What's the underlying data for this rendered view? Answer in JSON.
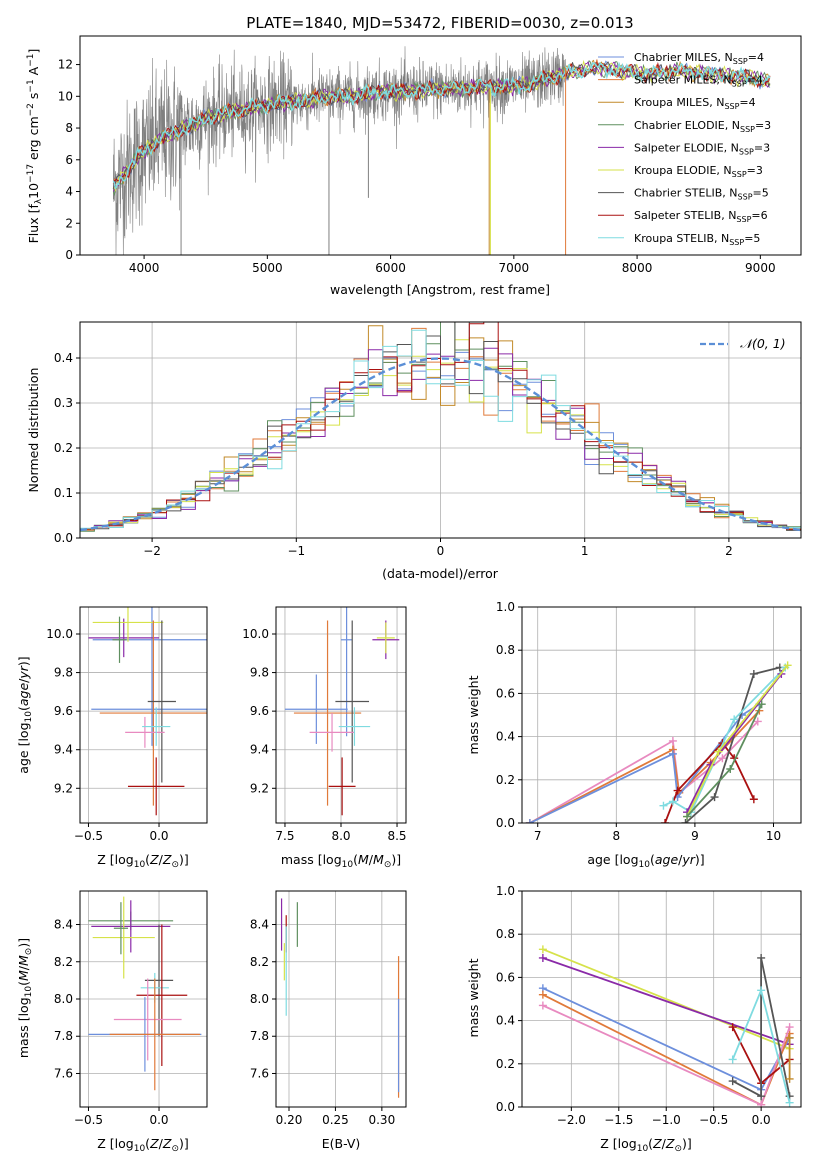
{
  "palette": {
    "Chabrier MILES": "#6d8fdc",
    "Salpeter MILES": "#e07a3a",
    "Kroupa MILES": "#c28a2a",
    "Chabrier ELODIE": "#5f8f5f",
    "Salpeter ELODIE": "#8a2aa8",
    "Kroupa ELODIE": "#d6e24a",
    "Chabrier STELIB": "#555555",
    "Salpeter STELIB": "#aa1111",
    "Kroupa STELIB": "#7fdbe0",
    "extra": "#e88ac0",
    "observed": "#808080"
  },
  "chart_data": [
    {
      "id": "spectrum",
      "type": "line",
      "title": "PLATE=1840, MJD=53472, FIBERID=0030, z=0.013",
      "xlabel": "wavelength [Angstrom, rest frame]",
      "ylabel": "Flux [f",
      "ylabel_full": "Flux [fλ10−17 erg cm−2 s−1 A−1]",
      "xlim": [
        3480,
        9330
      ],
      "ylim": [
        0,
        13.8
      ],
      "xticks": [
        4000,
        5000,
        6000,
        7000,
        8000,
        9000
      ],
      "yticks": [
        0,
        2,
        4,
        6,
        8,
        10,
        12
      ],
      "legend": [
        {
          "label": "Chabrier MILES, N",
          "sub": "SSP",
          "tail": "=4",
          "color": "#6d8fdc"
        },
        {
          "label": "Salpeter MILES, N",
          "sub": "SSP",
          "tail": "=4",
          "color": "#e07a3a"
        },
        {
          "label": "Kroupa MILES, N",
          "sub": "SSP",
          "tail": "=4",
          "color": "#c28a2a"
        },
        {
          "label": "Chabrier ELODIE, N",
          "sub": "SSP",
          "tail": "=3",
          "color": "#5f8f5f"
        },
        {
          "label": "Salpeter ELODIE, N",
          "sub": "SSP",
          "tail": "=3",
          "color": "#8a2aa8"
        },
        {
          "label": "Kroupa ELODIE, N",
          "sub": "SSP",
          "tail": "=3",
          "color": "#d6e24a"
        },
        {
          "label": "Chabrier STELIB, N",
          "sub": "SSP",
          "tail": "=5",
          "color": "#555555"
        },
        {
          "label": "Salpeter STELIB, N",
          "sub": "SSP",
          "tail": "=6",
          "color": "#aa1111"
        },
        {
          "label": "Kroupa STELIB, N",
          "sub": "SSP",
          "tail": "=5",
          "color": "#7fdbe0"
        }
      ],
      "continuum": [
        [
          3750,
          4.2
        ],
        [
          3850,
          5.2
        ],
        [
          3950,
          6.2
        ],
        [
          4050,
          6.8
        ],
        [
          4150,
          7.4
        ],
        [
          4300,
          7.9
        ],
        [
          4500,
          8.6
        ],
        [
          4700,
          9.0
        ],
        [
          4900,
          9.3
        ],
        [
          5100,
          9.6
        ],
        [
          5300,
          9.7
        ],
        [
          5500,
          10.0
        ],
        [
          5700,
          10.0
        ],
        [
          5900,
          10.3
        ],
        [
          6100,
          10.3
        ],
        [
          6300,
          10.4
        ],
        [
          6500,
          10.5
        ],
        [
          6700,
          10.6
        ],
        [
          6900,
          10.6
        ],
        [
          7100,
          10.7
        ],
        [
          7300,
          11.2
        ],
        [
          7500,
          11.6
        ],
        [
          7700,
          11.8
        ],
        [
          7900,
          11.6
        ],
        [
          8100,
          11.4
        ],
        [
          8300,
          11.6
        ],
        [
          8500,
          11.5
        ],
        [
          8700,
          11.3
        ],
        [
          8900,
          11.2
        ],
        [
          9080,
          10.9
        ]
      ],
      "observed_range": [
        3750,
        7420
      ]
    },
    {
      "id": "residuals",
      "type": "histogram",
      "xlabel": "(data-model)/error",
      "ylabel": "Normed distribution",
      "xlim": [
        -2.5,
        2.5
      ],
      "ylim": [
        0,
        0.48
      ],
      "xticks": [
        -2,
        -1,
        0,
        1,
        2
      ],
      "xtick_labels": [
        "−2",
        "−1",
        "0",
        "1",
        "2"
      ],
      "yticks": [
        0.0,
        0.1,
        0.2,
        0.3,
        0.4
      ],
      "legend": "𝒩(0, 1)",
      "bin_width": 0.1,
      "reference": {
        "mean": 0,
        "sigma": 1,
        "color": "#5b8fd6"
      }
    },
    {
      "id": "age-vs-Z",
      "type": "errorbar",
      "xlabel": "Z [log",
      "ylabel": "age  [log",
      "xlim": [
        -0.56,
        0.34
      ],
      "ylim": [
        9.02,
        10.14
      ],
      "xticks": [
        -0.5,
        0.0
      ],
      "xtick_labels": [
        "−0.5",
        "0.0"
      ],
      "yticks": [
        9.2,
        9.4,
        9.6,
        9.8,
        10.0
      ],
      "points": [
        {
          "x": -0.05,
          "y": 9.97,
          "xerr": 0.42,
          "yerr": 0.55,
          "color": "#6d8fdc"
        },
        {
          "x": -0.25,
          "y": 9.98,
          "xerr": 0.25,
          "yerr": 0.1,
          "color": "#8a2aa8"
        },
        {
          "x": -0.22,
          "y": 10.06,
          "xerr": 0.25,
          "yerr": 0.1,
          "color": "#d6e24a"
        },
        {
          "x": -0.28,
          "y": 9.97,
          "xerr": 0.05,
          "yerr": 0.12,
          "color": "#5f8f5f"
        },
        {
          "x": -0.04,
          "y": 9.61,
          "xerr": 0.44,
          "yerr": 0.2,
          "color": "#6d8fdc"
        },
        {
          "x": -0.04,
          "y": 9.59,
          "xerr": 0.38,
          "yerr": 0.48,
          "color": "#e07a3a"
        },
        {
          "x": 0.02,
          "y": 9.65,
          "xerr": 0.1,
          "yerr": 0.42,
          "color": "#555555"
        },
        {
          "x": -0.1,
          "y": 9.49,
          "xerr": 0.14,
          "yerr": 0.08,
          "color": "#e88ac0"
        },
        {
          "x": -0.02,
          "y": 9.52,
          "xerr": 0.1,
          "yerr": 0.1,
          "color": "#7fdbe0"
        },
        {
          "x": -0.02,
          "y": 9.21,
          "xerr": 0.2,
          "yerr": 0.15,
          "color": "#aa1111"
        }
      ]
    },
    {
      "id": "age-vs-mass",
      "type": "errorbar",
      "xlabel": "mass [log",
      "xlim": [
        7.42,
        8.58
      ],
      "ylim": [
        9.02,
        10.14
      ],
      "xticks": [
        7.5,
        8.0,
        8.5
      ],
      "xtick_labels": [
        "7.5",
        "8.0",
        "8.5"
      ],
      "yticks": [
        9.2,
        9.4,
        9.6,
        9.8,
        10.0
      ],
      "points": [
        {
          "x": 8.4,
          "y": 9.97,
          "xerr": 0.12,
          "yerr": 0.1,
          "color": "#8a2aa8"
        },
        {
          "x": 8.4,
          "y": 9.98,
          "xerr": 0.08,
          "yerr": 0.08,
          "color": "#d6e24a"
        },
        {
          "x": 8.05,
          "y": 9.97,
          "xerr": 0.05,
          "yerr": 0.5,
          "color": "#6d8fdc"
        },
        {
          "x": 7.78,
          "y": 9.61,
          "xerr": 0.28,
          "yerr": 0.18,
          "color": "#6d8fdc"
        },
        {
          "x": 7.88,
          "y": 9.59,
          "xerr": 0.3,
          "yerr": 0.48,
          "color": "#e07a3a"
        },
        {
          "x": 8.1,
          "y": 9.65,
          "xerr": 0.15,
          "yerr": 0.42,
          "color": "#555555"
        },
        {
          "x": 7.92,
          "y": 9.49,
          "xerr": 0.2,
          "yerr": 0.1,
          "color": "#e88ac0"
        },
        {
          "x": 8.12,
          "y": 9.52,
          "xerr": 0.14,
          "yerr": 0.1,
          "color": "#7fdbe0"
        },
        {
          "x": 8.01,
          "y": 9.21,
          "xerr": 0.12,
          "yerr": 0.15,
          "color": "#aa1111"
        }
      ]
    },
    {
      "id": "weight-vs-age",
      "type": "line",
      "xlabel": "age  [log",
      "ylabel": "mass weight",
      "xlim": [
        6.8,
        10.35
      ],
      "ylim": [
        0,
        1.0
      ],
      "xticks": [
        7,
        8,
        9,
        10
      ],
      "yticks": [
        0.0,
        0.2,
        0.4,
        0.6,
        0.8,
        1.0
      ],
      "series": [
        {
          "color": "#e88ac0",
          "x": [
            6.9,
            8.72,
            8.8,
            9.35,
            9.8
          ],
          "y": [
            0.0,
            0.38,
            0.14,
            0.3,
            0.47
          ]
        },
        {
          "color": "#e07a3a",
          "x": [
            6.9,
            8.72,
            8.8,
            9.2,
            9.82
          ],
          "y": [
            0.0,
            0.34,
            0.14,
            0.28,
            0.52
          ]
        },
        {
          "color": "#6d8fdc",
          "x": [
            6.9,
            8.72,
            8.78,
            9.6,
            9.82
          ],
          "y": [
            0.0,
            0.32,
            0.12,
            0.5,
            0.55
          ]
        },
        {
          "color": "#aa1111",
          "x": [
            8.62,
            8.78,
            9.35,
            9.5,
            9.75
          ],
          "y": [
            0.0,
            0.15,
            0.37,
            0.3,
            0.11
          ]
        },
        {
          "color": "#555555",
          "x": [
            8.88,
            9.25,
            9.75,
            10.08
          ],
          "y": [
            0.0,
            0.12,
            0.69,
            0.72
          ]
        },
        {
          "color": "#7fdbe0",
          "x": [
            8.6,
            8.72,
            8.95,
            9.5,
            10.15
          ],
          "y": [
            0.08,
            0.1,
            0.05,
            0.48,
            0.72
          ]
        },
        {
          "color": "#8a2aa8",
          "x": [
            8.9,
            9.2,
            10.1
          ],
          "y": [
            0.05,
            0.27,
            0.69
          ]
        },
        {
          "color": "#d6e24a",
          "x": [
            8.9,
            9.3,
            10.18
          ],
          "y": [
            0.03,
            0.33,
            0.73
          ]
        },
        {
          "color": "#5f8f5f",
          "x": [
            8.9,
            9.45,
            9.85
          ],
          "y": [
            0.03,
            0.25,
            0.55
          ]
        }
      ]
    },
    {
      "id": "mass-vs-Z",
      "type": "errorbar",
      "xlabel": "Z [log",
      "ylabel": "mass [log",
      "xlim": [
        -0.56,
        0.34
      ],
      "ylim": [
        7.42,
        8.58
      ],
      "xticks": [
        -0.5,
        0.0
      ],
      "xtick_labels": [
        "−0.5",
        "0.0"
      ],
      "yticks": [
        7.6,
        7.8,
        8.0,
        8.2,
        8.4
      ],
      "points": [
        {
          "x": -0.2,
          "y": 8.42,
          "xerr": 0.3,
          "yerr": 0.05,
          "color": "#5f8f5f"
        },
        {
          "x": -0.2,
          "y": 8.39,
          "xerr": 0.28,
          "yerr": 0.14,
          "color": "#8a2aa8"
        },
        {
          "x": -0.25,
          "y": 8.33,
          "xerr": 0.22,
          "yerr": 0.22,
          "color": "#d6e24a"
        },
        {
          "x": -0.27,
          "y": 8.38,
          "xerr": 0.05,
          "yerr": 0.14,
          "color": "#5f8f5f"
        },
        {
          "x": 0.0,
          "y": 8.1,
          "xerr": 0.1,
          "yerr": 0.3,
          "color": "#555555"
        },
        {
          "x": -0.03,
          "y": 8.06,
          "xerr": 0.1,
          "yerr": 0.08,
          "color": "#7fdbe0"
        },
        {
          "x": 0.02,
          "y": 8.02,
          "xerr": 0.18,
          "yerr": 0.38,
          "color": "#aa1111"
        },
        {
          "x": -0.08,
          "y": 7.89,
          "xerr": 0.24,
          "yerr": 0.22,
          "color": "#e88ac0"
        },
        {
          "x": -0.1,
          "y": 7.81,
          "xerr": 0.4,
          "yerr": 0.2,
          "color": "#6d8fdc"
        },
        {
          "x": -0.03,
          "y": 7.81,
          "xerr": 0.32,
          "yerr": 0.3,
          "color": "#e07a3a"
        }
      ]
    },
    {
      "id": "mass-vs-EBV",
      "type": "errorbar",
      "xlabel": "E(B-V)",
      "xlim": [
        0.186,
        0.326
      ],
      "ylim": [
        7.42,
        8.58
      ],
      "xticks": [
        0.2,
        0.25,
        0.3
      ],
      "xtick_labels": [
        "0.20",
        "0.25",
        "0.30"
      ],
      "yticks": [
        7.6,
        7.8,
        8.0,
        8.2,
        8.4
      ],
      "points": [
        {
          "x": 0.192,
          "y": 8.4,
          "yerr": 0.14,
          "color": "#8a2aa8"
        },
        {
          "x": 0.197,
          "y": 8.35,
          "yerr": 0.1,
          "color": "#aa1111"
        },
        {
          "x": 0.195,
          "y": 8.2,
          "yerr": 0.1,
          "color": "#d6e24a"
        },
        {
          "x": 0.197,
          "y": 8.15,
          "yerr": 0.24,
          "color": "#7fdbe0"
        },
        {
          "x": 0.209,
          "y": 8.4,
          "yerr": 0.12,
          "color": "#5f8f5f"
        },
        {
          "x": 0.318,
          "y": 7.85,
          "yerr": 0.38,
          "color": "#e07a3a"
        },
        {
          "x": 0.318,
          "y": 7.75,
          "yerr": 0.25,
          "color": "#6d8fdc"
        }
      ]
    },
    {
      "id": "weight-vs-Z",
      "type": "line",
      "xlabel": "Z [log",
      "ylabel": "mass weight",
      "xlim": [
        -2.52,
        0.42
      ],
      "ylim": [
        0,
        1.0
      ],
      "xticks": [
        -2.0,
        -1.5,
        -1.0,
        -0.5,
        0.0
      ],
      "xtick_labels": [
        "−2.0",
        "−1.5",
        "−1.0",
        "−0.5",
        "0.0"
      ],
      "yticks": [
        0.0,
        0.2,
        0.4,
        0.6,
        0.8,
        1.0
      ],
      "series": [
        {
          "color": "#d6e24a",
          "x": [
            -2.3,
            0.3
          ],
          "y": [
            0.73,
            0.27
          ]
        },
        {
          "color": "#8a2aa8",
          "x": [
            -2.3,
            0.3
          ],
          "y": [
            0.69,
            0.29
          ]
        },
        {
          "color": "#6d8fdc",
          "x": [
            -2.3,
            0.0,
            0.3
          ],
          "y": [
            0.55,
            0.08,
            0.32
          ]
        },
        {
          "color": "#e07a3a",
          "x": [
            -2.3,
            0.0,
            0.3
          ],
          "y": [
            0.52,
            0.01,
            0.34
          ]
        },
        {
          "color": "#e88ac0",
          "x": [
            -2.3,
            0.0,
            0.3
          ],
          "y": [
            0.47,
            0.01,
            0.37
          ]
        },
        {
          "color": "#aa1111",
          "x": [
            -0.3,
            0.0,
            0.3
          ],
          "y": [
            0.37,
            0.11,
            0.22
          ]
        },
        {
          "color": "#555555",
          "x": [
            -0.3,
            0.0,
            0.0,
            0.3
          ],
          "y": [
            0.12,
            0.05,
            0.69,
            0.05
          ]
        },
        {
          "color": "#7fdbe0",
          "x": [
            -0.3,
            0.0,
            0.3
          ],
          "y": [
            0.22,
            0.54,
            0.02
          ]
        },
        {
          "color": "#c28a2a",
          "x": [
            0.3,
            0.3
          ],
          "y": [
            0.13,
            0.32
          ]
        }
      ]
    }
  ]
}
